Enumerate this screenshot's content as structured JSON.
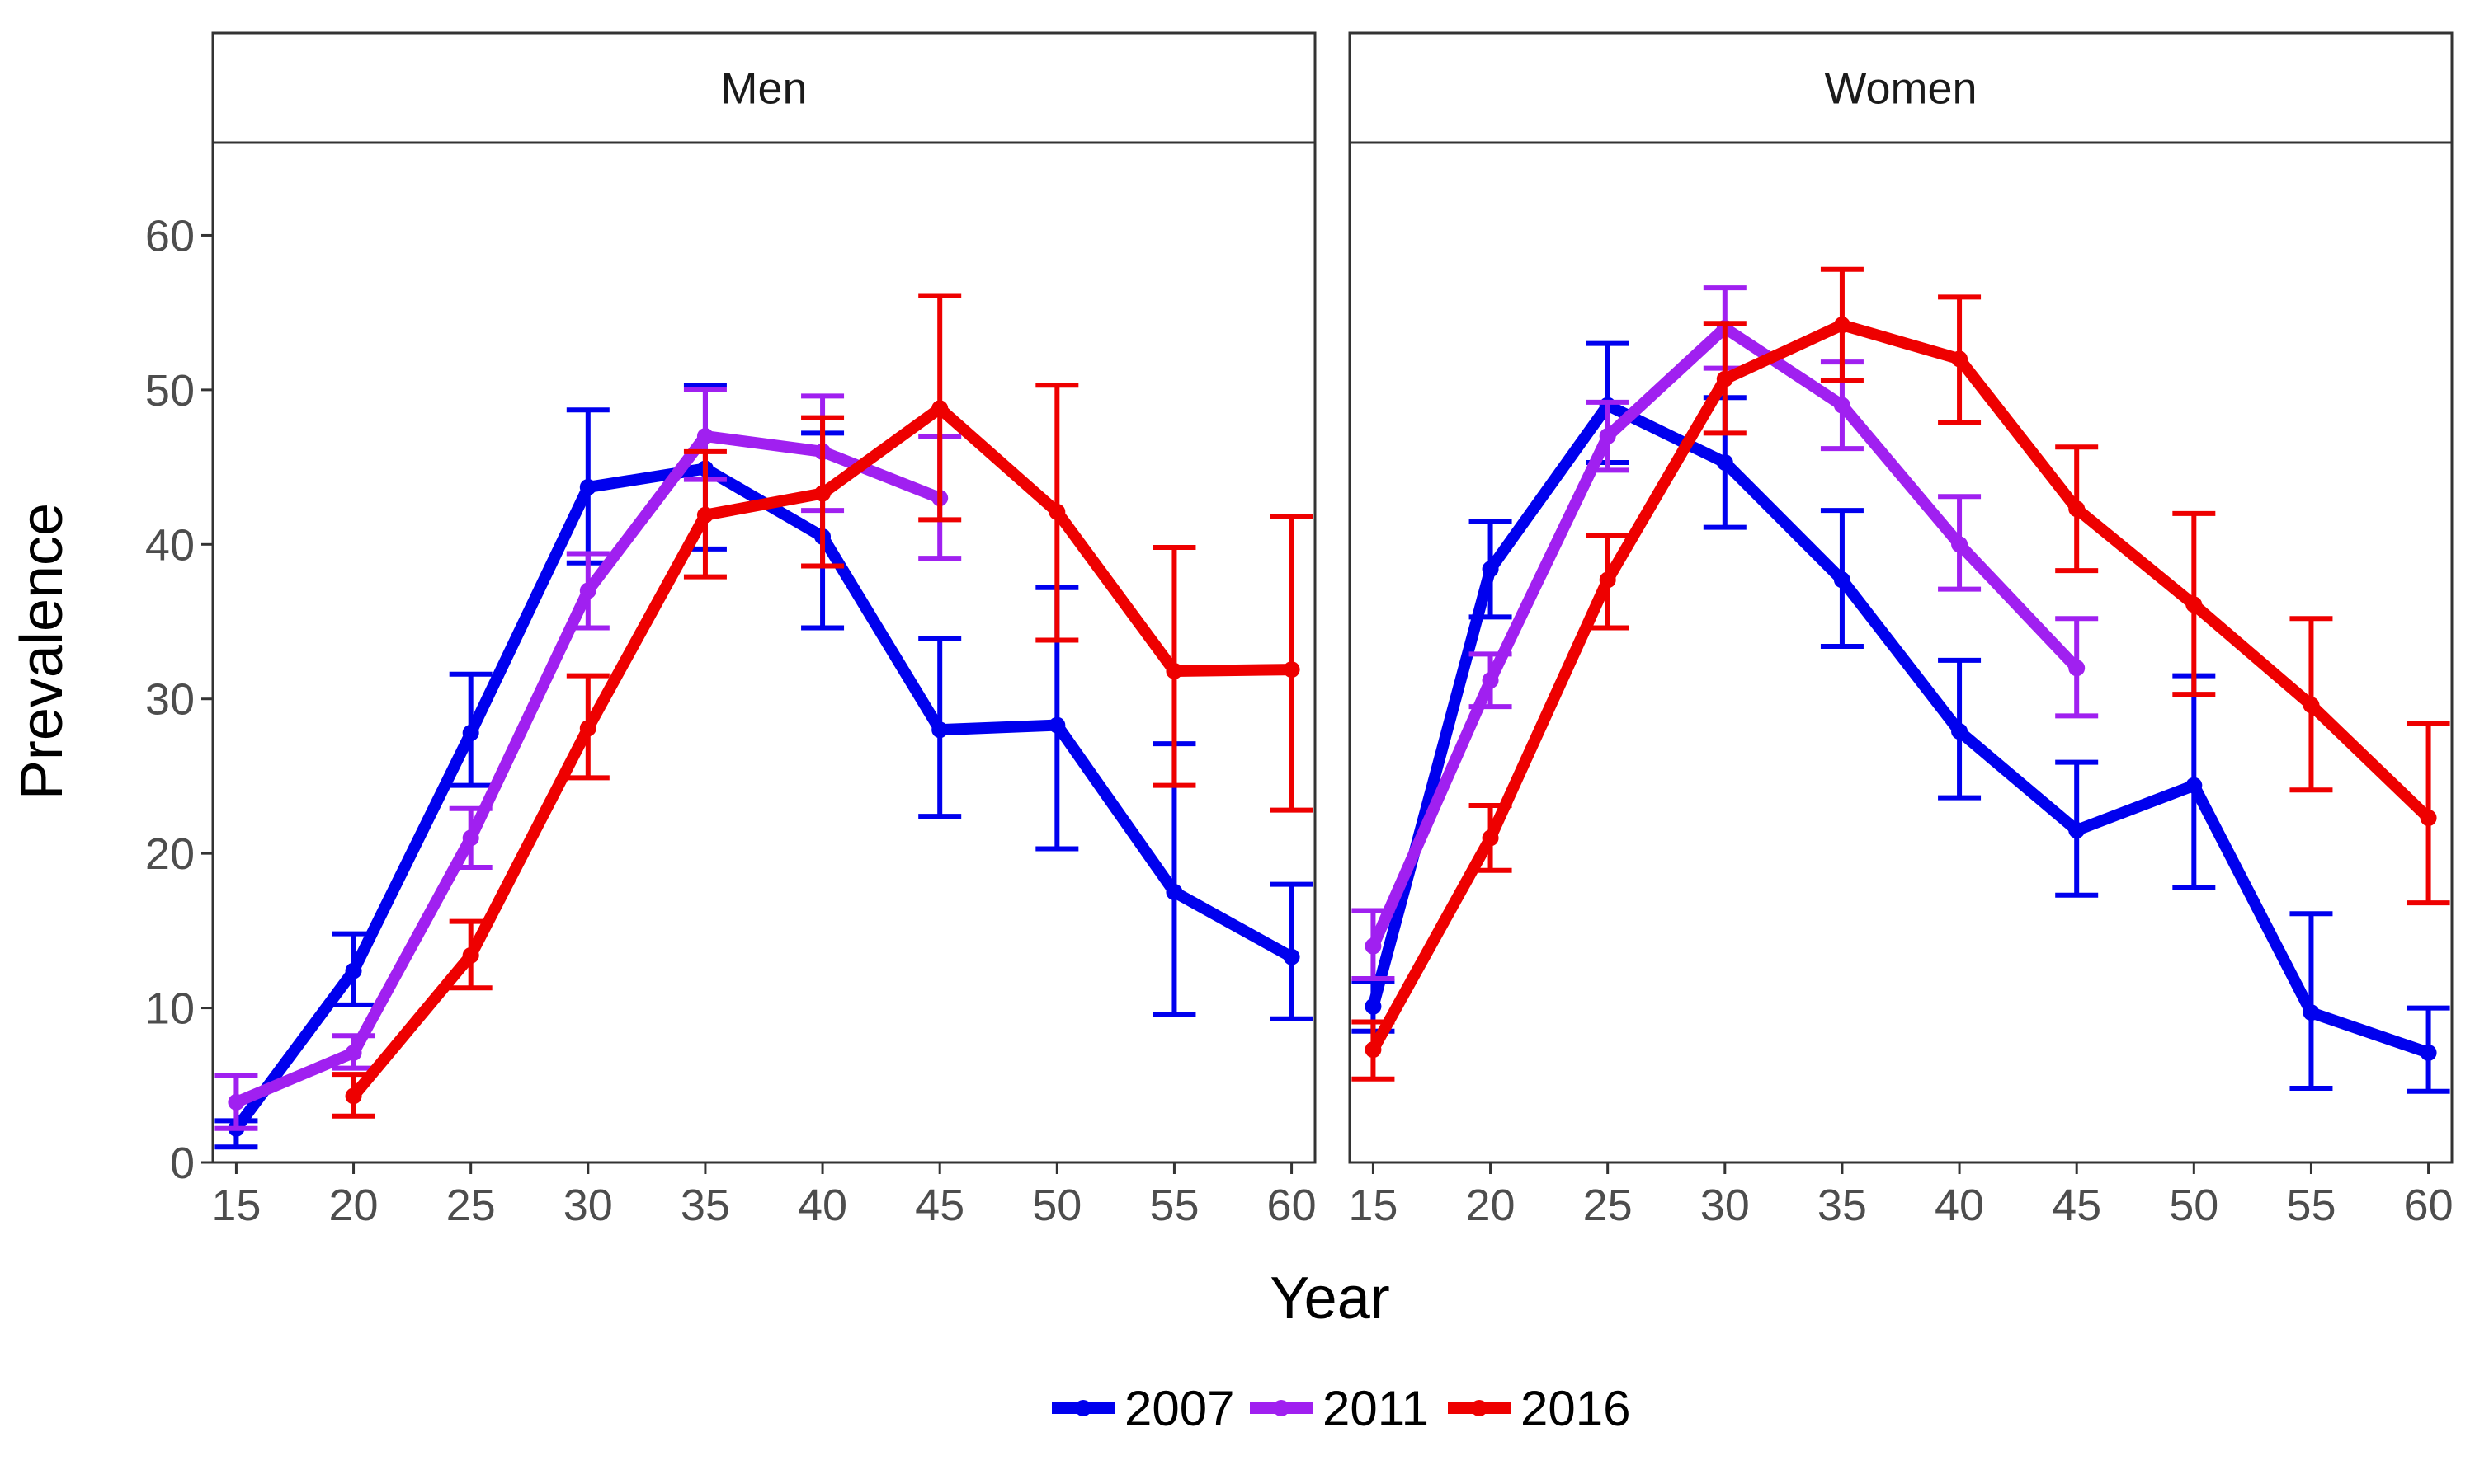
{
  "chart_data": {
    "type": "line",
    "xlabel": "Year",
    "ylabel": "Prevalence",
    "x": [
      15,
      20,
      25,
      30,
      35,
      40,
      45,
      50,
      55,
      60
    ],
    "xlim": [
      14,
      61
    ],
    "ylim": [
      0,
      66
    ],
    "yticks": [
      0,
      10,
      20,
      30,
      40,
      50,
      60
    ],
    "grid": false,
    "legend_position": "bottom",
    "legend": [
      "2007",
      "2011",
      "2016"
    ],
    "series_colors": {
      "2007": "#0000ee",
      "2011": "#a020f0",
      "2016": "#ee0000"
    },
    "panels": [
      {
        "name": "Men",
        "series": [
          {
            "name": "2007",
            "values": [
              2.2,
              12.4,
              27.8,
              43.7,
              44.9,
              40.5,
              28.0,
              28.3,
              17.5,
              13.3
            ],
            "lower": [
              1.0,
              10.2,
              24.4,
              38.8,
              39.7,
              34.6,
              22.4,
              20.3,
              9.6,
              9.3
            ],
            "upper": [
              2.7,
              14.8,
              31.6,
              48.7,
              50.3,
              47.2,
              33.9,
              37.2,
              27.1,
              18.0
            ]
          },
          {
            "name": "2011",
            "values": [
              3.9,
              7.1,
              21.0,
              37.0,
              47.0,
              46.0,
              43.0,
              null,
              null,
              null
            ],
            "lower": [
              2.2,
              6.1,
              19.1,
              34.6,
              44.2,
              42.2,
              39.1,
              null,
              null,
              null
            ],
            "upper": [
              5.6,
              8.2,
              22.9,
              39.4,
              50.0,
              49.6,
              47.0,
              null,
              null,
              null
            ]
          },
          {
            "name": "2016",
            "values": [
              null,
              4.3,
              13.4,
              28.1,
              41.9,
              43.3,
              48.8,
              42.1,
              31.8,
              31.9
            ],
            "lower": [
              null,
              3.0,
              11.3,
              24.9,
              37.9,
              38.6,
              41.6,
              33.8,
              24.4,
              22.8
            ],
            "upper": [
              null,
              5.7,
              15.6,
              31.5,
              46.0,
              48.2,
              56.1,
              50.3,
              39.8,
              41.8
            ]
          }
        ]
      },
      {
        "name": "Women",
        "series": [
          {
            "name": "2007",
            "values": [
              10.1,
              38.4,
              49.0,
              45.3,
              37.7,
              27.9,
              21.5,
              24.4,
              9.7,
              7.1
            ],
            "lower": [
              8.5,
              35.3,
              45.3,
              41.1,
              33.4,
              23.6,
              17.3,
              17.8,
              4.8,
              4.6
            ],
            "upper": [
              11.7,
              41.5,
              53.0,
              49.5,
              42.2,
              32.5,
              25.9,
              31.5,
              16.1,
              10.0
            ]
          },
          {
            "name": "2011",
            "values": [
              14.0,
              31.2,
              47.0,
              54.0,
              49.0,
              40.0,
              32.0,
              null,
              null,
              null
            ],
            "lower": [
              11.9,
              29.5,
              44.8,
              51.4,
              46.2,
              37.1,
              28.9,
              null,
              null,
              null
            ],
            "upper": [
              16.3,
              32.9,
              49.2,
              56.6,
              51.8,
              43.1,
              35.2,
              null,
              null,
              null
            ]
          },
          {
            "name": "2016",
            "values": [
              7.3,
              21.0,
              37.7,
              50.7,
              54.2,
              52.0,
              42.3,
              36.1,
              29.6,
              22.3
            ],
            "lower": [
              5.4,
              18.9,
              34.6,
              47.2,
              50.6,
              47.9,
              38.3,
              30.3,
              24.1,
              16.8
            ],
            "upper": [
              9.1,
              23.1,
              40.6,
              54.3,
              57.8,
              56.0,
              46.3,
              42.0,
              35.2,
              28.4
            ]
          }
        ]
      }
    ]
  }
}
